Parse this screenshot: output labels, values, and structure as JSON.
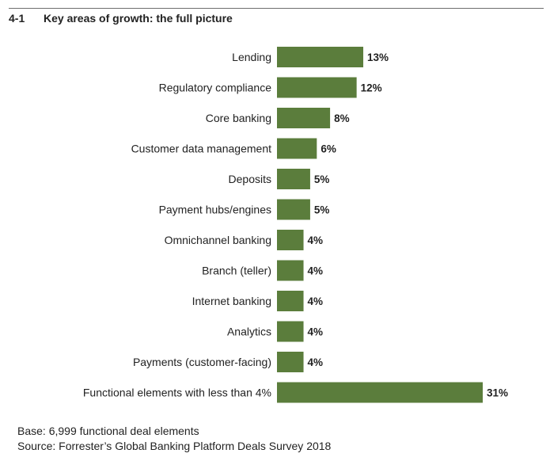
{
  "header": {
    "figure_number": "4-1",
    "title": "Key areas of growth: the full picture"
  },
  "footer": {
    "base": "Base: 6,999 functional deal elements",
    "source": "Source: Forrester’s Global Banking Platform Deals Survey 2018"
  },
  "colors": {
    "bar": "#5b7d3c"
  },
  "chart_data": {
    "type": "bar",
    "orientation": "horizontal",
    "title": "Key areas of growth: the full picture",
    "categories": [
      "Lending",
      "Regulatory compliance",
      "Core banking",
      "Customer data management",
      "Deposits",
      "Payment hubs/engines",
      "Omnichannel banking",
      "Branch (teller)",
      "Internet banking",
      "Analytics",
      "Payments (customer-facing)",
      "Functional elements with less than 4%"
    ],
    "values": [
      13,
      12,
      8,
      6,
      5,
      5,
      4,
      4,
      4,
      4,
      4,
      31
    ],
    "value_labels": [
      "13%",
      "12%",
      "8%",
      "6%",
      "5%",
      "5%",
      "4%",
      "4%",
      "4%",
      "4%",
      "4%",
      "31%"
    ],
    "unit": "%",
    "xlim": [
      0,
      31
    ],
    "grid": false,
    "legend": "none"
  }
}
